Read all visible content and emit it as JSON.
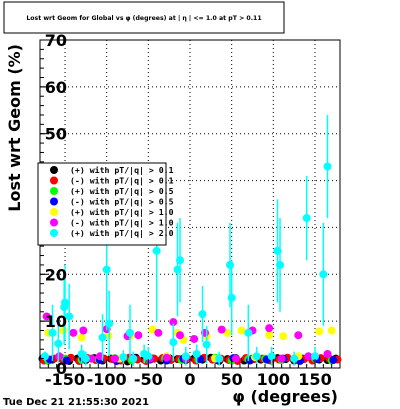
{
  "title": "Lost wrt Geom for Global vs φ (degrees) at | η | <= 1.0 at pT > 0.11",
  "footer": "Tue Dec 21 21:55:30 2021",
  "chart_data": {
    "type": "scatter",
    "title": "Lost wrt Geom for Global vs φ (degrees) at | η | <= 1.0 at pT > 0.11",
    "xlabel": "φ (degrees)",
    "ylabel": "Lost wrt Geom (%)",
    "xlim": [
      -180,
      180
    ],
    "ylim": [
      0,
      70
    ],
    "x_ticks": [
      "-150",
      "-100",
      "-50",
      "0",
      "50",
      "100",
      "150"
    ],
    "y_ticks": [
      "0",
      "10",
      "20",
      "30",
      "40",
      "50",
      "60",
      "70"
    ],
    "grid": true,
    "legend_position": "left-middle",
    "series": [
      {
        "name": "(+) with pT/|q| > 0.1",
        "color": "#000000",
        "x": [
          -177,
          -165,
          -155,
          -145,
          -135,
          -125,
          -115,
          -105,
          -95,
          -85,
          -75,
          -65,
          -55,
          -45,
          -35,
          -25,
          -15,
          -5,
          5,
          15,
          25,
          35,
          45,
          55,
          65,
          75,
          85,
          95,
          105,
          115,
          125,
          135,
          145,
          155,
          165,
          175
        ],
        "y": [
          2,
          1.8,
          2.2,
          1.5,
          2,
          1.7,
          2.1,
          1.6,
          2,
          1.9,
          1.4,
          2.2,
          1.8,
          2,
          1.6,
          2.1,
          1.9,
          1.7,
          2,
          1.8,
          2.2,
          1.5,
          1.9,
          2.1,
          1.6,
          2,
          1.8,
          1.7,
          2.1,
          1.9,
          1.6,
          2,
          2.2,
          1.8,
          1.7,
          2
        ]
      },
      {
        "name": "(-) with pT/|q| > 0.1",
        "color": "#ff0000",
        "x": [
          -175,
          -163,
          -153,
          -143,
          -133,
          -123,
          -113,
          -103,
          -93,
          -83,
          -73,
          -63,
          -53,
          -43,
          -33,
          -23,
          -13,
          -3,
          7,
          17,
          27,
          37,
          47,
          57,
          67,
          77,
          87,
          97,
          107,
          117,
          127,
          137,
          147,
          157,
          167,
          177
        ],
        "y": [
          1.6,
          2,
          1.8,
          2.2,
          1.5,
          2.1,
          1.7,
          2,
          1.9,
          1.6,
          2.2,
          1.8,
          1.5,
          2,
          2.1,
          1.7,
          1.9,
          2,
          1.6,
          2.2,
          1.8,
          2,
          1.7,
          1.5,
          2.1,
          1.9,
          2,
          1.6,
          1.8,
          2.2,
          1.7,
          1.9,
          1.6,
          2.1,
          2,
          1.8
        ]
      },
      {
        "name": "(+) with pT/|q| > 0.5",
        "color": "#00ff00",
        "x": [
          -170,
          -150,
          -130,
          -110,
          -90,
          -70,
          -50,
          -30,
          -10,
          10,
          30,
          50,
          70,
          90,
          110,
          130,
          150,
          170
        ],
        "y": [
          1.5,
          2,
          1.7,
          1.8,
          2.1,
          1.6,
          1.9,
          2,
          1.7,
          1.8,
          2.2,
          1.6,
          1.9,
          2,
          1.7,
          1.8,
          2,
          1.6
        ]
      },
      {
        "name": "(-) with pT/|q| > 0.5",
        "color": "#0000ff",
        "x": [
          -168,
          -148,
          -128,
          -108,
          -88,
          -68,
          -48,
          -28,
          -8,
          12,
          32,
          52,
          72,
          92,
          112,
          132,
          152,
          172
        ],
        "y": [
          1.8,
          1.6,
          2,
          1.7,
          1.5,
          2.1,
          1.8,
          1.6,
          2,
          1.9,
          1.7,
          2.1,
          1.6,
          1.8,
          2,
          1.5,
          1.9,
          1.7
        ]
      },
      {
        "name": "(+) with pT/|q| > 1.0",
        "color": "#ffff00",
        "x": [
          -170,
          -152,
          -130,
          -98,
          -85,
          -72,
          -45,
          -28,
          -15,
          -8,
          20,
          30,
          45,
          62,
          78,
          95,
          112,
          130,
          155,
          170
        ],
        "y": [
          7.5,
          8,
          6.5,
          7,
          2,
          6.8,
          8.2,
          2.5,
          7.5,
          6,
          6.8,
          2,
          7.5,
          8,
          2.3,
          7,
          6.8,
          2.5,
          7.8,
          8
        ]
      },
      {
        "name": "(-) with pT/|q| > 1.0",
        "color": "#ff00ff",
        "x": [
          -172,
          -157,
          -140,
          -128,
          -118,
          -108,
          -100,
          -90,
          -75,
          -62,
          -48,
          -38,
          -28,
          -20,
          -12,
          -5,
          5,
          18,
          38,
          55,
          75,
          95,
          110,
          130,
          142,
          165
        ],
        "y": [
          11,
          2.5,
          7.5,
          8,
          2,
          2.5,
          8.3,
          2,
          6.8,
          7,
          2,
          7.5,
          2.2,
          9.8,
          7,
          2,
          6.2,
          7.5,
          8.2,
          2,
          8,
          8.5,
          2,
          7,
          2.5,
          3
        ]
      },
      {
        "name": "(+) with pT/|q| > 2.0",
        "color": "#00ffff",
        "x": [
          -174,
          -165,
          -158,
          -151,
          -150,
          -145,
          -130,
          -125,
          -105,
          -100,
          -97,
          -80,
          -72,
          -68,
          -55,
          -50,
          -40,
          -20,
          -15,
          -12,
          -5,
          8,
          15,
          20,
          35,
          48,
          50,
          70,
          80,
          98,
          105,
          108,
          125,
          140,
          150,
          160,
          165
        ],
        "y": [
          2.5,
          7.5,
          5.2,
          13,
          14,
          11,
          3,
          2,
          6.5,
          21,
          9.5,
          2.3,
          7.5,
          2,
          3,
          2.5,
          25,
          5.5,
          21,
          23,
          2.5,
          3,
          11.5,
          5,
          2,
          22,
          15,
          7.5,
          2.5,
          2.5,
          25,
          22,
          2,
          32,
          2.5,
          20,
          43
        ],
        "err": [
          1,
          6,
          4,
          8,
          8,
          7,
          2,
          1.5,
          5,
          13,
          7,
          1.5,
          6,
          1.5,
          2,
          2,
          15,
          4,
          10,
          9,
          2,
          2,
          6,
          4,
          1.5,
          9,
          8,
          6,
          2,
          2,
          11,
          10,
          1.5,
          9,
          2,
          11,
          11
        ]
      }
    ]
  }
}
